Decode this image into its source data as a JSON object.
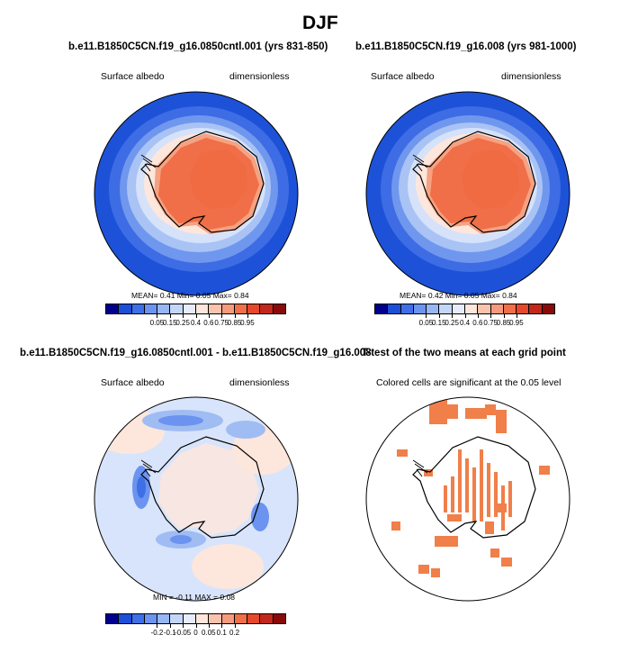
{
  "title": "DJF",
  "panels": [
    {
      "title": "b.e11.B1850C5CN.f19_g16.0850cntl.001 (yrs 831-850)",
      "left_label": "Surface albedo",
      "right_label": "dimensionless",
      "stats": "MEAN=  0.41  Min=  0.05  Max=  0.84",
      "colorbar_ticks": [
        "0.05",
        "0.15",
        "0.25",
        "0.4",
        "0.6",
        "0.75",
        "0.85",
        "0.95"
      ]
    },
    {
      "title": "b.e11.B1850C5CN.f19_g16.008 (yrs 981-1000)",
      "left_label": "Surface albedo",
      "right_label": "dimensionless",
      "stats": "MEAN=  0.42  Min=  0.05  Max=  0.84",
      "colorbar_ticks": [
        "0.05",
        "0.15",
        "0.25",
        "0.4",
        "0.6",
        "0.75",
        "0.85",
        "0.95"
      ]
    },
    {
      "title": "b.e11.B1850C5CN.f19_g16.0850cntl.001 - b.e11.B1850C5CN.f19_g16.008",
      "left_label": "Surface albedo",
      "right_label": "dimensionless",
      "stats": "MIN =  -0.11  MAX =  0.08",
      "colorbar_ticks": [
        "-0.2",
        "-0.1",
        "-0.05",
        "0",
        "0.05",
        "0.1",
        "0.2"
      ]
    },
    {
      "title": "T-test of the two means at each grid point",
      "subtitle": "Colored cells are significant at the 0.05 level"
    }
  ],
  "colors": {
    "abs_scale": [
      "#00008f",
      "#1b4fd8",
      "#3f6fe6",
      "#6b93ef",
      "#98b6f4",
      "#c4d6f8",
      "#e6ecfb",
      "#fde6dc",
      "#f9c3ad",
      "#f59b7d",
      "#f06f48",
      "#e5482a",
      "#c2271c",
      "#8a0a0a"
    ],
    "diff_scale": [
      "#00008f",
      "#1b4fd8",
      "#3f6fe6",
      "#6b93ef",
      "#98b6f4",
      "#c4d6f8",
      "#e6ecfb",
      "#fde6dc",
      "#f9c3ad",
      "#f59b7d",
      "#f06f48",
      "#e5482a",
      "#c2271c",
      "#8a0a0a"
    ],
    "ttest": "#f07f4a"
  },
  "chart_data": [
    {
      "type": "heatmap",
      "title": "b.e11.B1850C5CN.f19_g16.0850cntl.001 (yrs 831-850)",
      "variable": "Surface albedo",
      "units": "dimensionless",
      "mean": 0.41,
      "min": 0.05,
      "max": 0.84,
      "levels": [
        0.05,
        0.15,
        0.25,
        0.4,
        0.6,
        0.75,
        0.85,
        0.95
      ]
    },
    {
      "type": "heatmap",
      "title": "b.e11.B1850C5CN.f19_g16.008 (yrs 981-1000)",
      "variable": "Surface albedo",
      "units": "dimensionless",
      "mean": 0.42,
      "min": 0.05,
      "max": 0.84,
      "levels": [
        0.05,
        0.15,
        0.25,
        0.4,
        0.6,
        0.75,
        0.85,
        0.95
      ]
    },
    {
      "type": "heatmap",
      "title": "b.e11.B1850C5CN.f19_g16.0850cntl.001 - b.e11.B1850C5CN.f19_g16.008",
      "variable": "Surface albedo",
      "units": "dimensionless",
      "min": -0.11,
      "max": 0.08,
      "levels": [
        -0.2,
        -0.1,
        -0.05,
        0,
        0.05,
        0.1,
        0.2
      ]
    },
    {
      "type": "heatmap",
      "title": "T-test of the two means at each grid point",
      "note": "Colored cells are significant at the 0.05 level",
      "significance_level": 0.05
    }
  ]
}
